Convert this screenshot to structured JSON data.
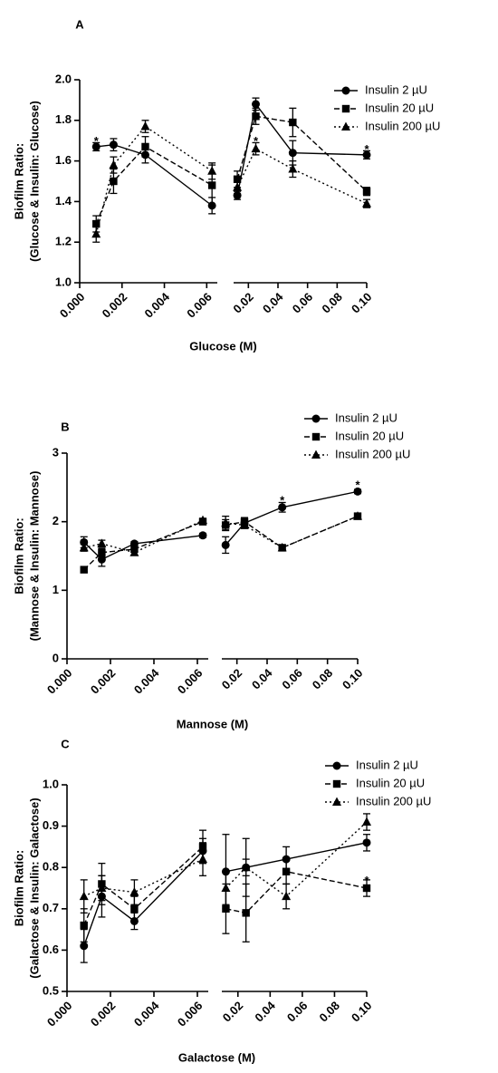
{
  "chart_data": [
    {
      "type": "line",
      "panel": "A",
      "ylabel": [
        "Biofilm Ratio:",
        "(Glucose & Insulin: Glucose)"
      ],
      "xlabel": "Glucose (M)",
      "ylim": [
        1.0,
        2.0
      ],
      "yticks": [
        {
          "value": 1.0,
          "label": "1.0"
        },
        1.2,
        1.4,
        1.6,
        1.8,
        {
          "value": 2.0,
          "label": "2.0"
        }
      ],
      "segments": [
        {
          "xlim": [
            0,
            0.0065
          ],
          "xticks": [
            {
              "value": 0,
              "label": "0.000"
            },
            0.002,
            0.004,
            0.006
          ]
        },
        {
          "xlim": [
            0.01,
            0.1
          ],
          "xticks": [
            0.02,
            0.04,
            0.06,
            0.08,
            {
              "value": 0.1,
              "label": "0.10"
            }
          ]
        }
      ],
      "x": [
        0.00078,
        0.0016,
        0.0031,
        0.00625,
        0.0125,
        0.025,
        0.05,
        0.1
      ],
      "legend": "upper right",
      "series": [
        {
          "name": "Insulin 2 µU",
          "color": "#000000",
          "marker": "circle",
          "linestyle": "solid",
          "values": [
            1.67,
            1.68,
            1.63,
            1.38,
            1.43,
            1.88,
            1.64,
            1.63
          ],
          "errors": [
            0.02,
            0.03,
            0.04,
            0.04,
            0.02,
            0.03,
            0.06,
            0.02
          ]
        },
        {
          "name": "Insulin 20 µU",
          "color": "#000000",
          "marker": "square",
          "linestyle": "dashed",
          "values": [
            1.29,
            1.5,
            1.67,
            1.48,
            1.51,
            1.82,
            1.79,
            1.45
          ],
          "errors": [
            0.04,
            0.06,
            0.05,
            0.1,
            0.04,
            0.04,
            0.07,
            0.02
          ]
        },
        {
          "name": "Insulin 200 µU",
          "color": "#000000",
          "marker": "triangle",
          "linestyle": "dotted",
          "values": [
            1.24,
            1.58,
            1.77,
            1.55,
            1.47,
            1.66,
            1.56,
            1.39
          ],
          "errors": [
            0.04,
            0.04,
            0.03,
            0.04,
            0.03,
            0.03,
            0.04,
            0.02
          ]
        }
      ],
      "annotations": [
        {
          "text": "*",
          "x": 0.00078,
          "y": 1.72
        },
        {
          "text": "*",
          "x": 0.025,
          "y": 1.72
        },
        {
          "text": "*",
          "x": 0.1,
          "y": 1.68
        }
      ]
    },
    {
      "type": "line",
      "panel": "B",
      "ylabel": [
        "Biofilm Ratio:",
        "(Mannose & Insulin: Mannose)"
      ],
      "xlabel": "Mannose (M)",
      "ylim": [
        0,
        3
      ],
      "yticks": [
        0,
        1,
        2,
        3
      ],
      "segments": [
        {
          "xlim": [
            0,
            0.0065
          ],
          "xticks": [
            {
              "value": 0,
              "label": "0.000"
            },
            0.002,
            0.004,
            0.006
          ]
        },
        {
          "xlim": [
            0.01,
            0.1
          ],
          "xticks": [
            0.02,
            0.04,
            0.06,
            0.08,
            {
              "value": 0.1,
              "label": "0.10"
            }
          ]
        }
      ],
      "x": [
        0.00078,
        0.0016,
        0.0031,
        0.00625,
        0.0125,
        0.025,
        0.05,
        0.1
      ],
      "legend": "upper right",
      "series": [
        {
          "name": "Insulin 2 µU",
          "color": "#000000",
          "marker": "circle",
          "linestyle": "solid",
          "values": [
            1.7,
            1.45,
            1.68,
            1.8,
            1.66,
            1.98,
            2.21,
            2.44
          ],
          "errors": [
            0.08,
            0.1,
            0.03,
            0.03,
            0.12,
            0.05,
            0.07,
            0.03
          ]
        },
        {
          "name": "Insulin 20 µU",
          "color": "#000000",
          "marker": "square",
          "linestyle": "dashed",
          "values": [
            1.3,
            1.55,
            1.6,
            2.0,
            1.95,
            2.0,
            1.62,
            2.08
          ],
          "errors": [
            0.03,
            0.06,
            0.04,
            0.03,
            0.08,
            0.06,
            0.04,
            0.04
          ]
        },
        {
          "name": "Insulin 200 µU",
          "color": "#000000",
          "marker": "triangle",
          "linestyle": "dotted",
          "values": [
            1.62,
            1.68,
            1.55,
            2.02,
            1.98,
            1.95,
            1.62,
            2.08
          ],
          "errors": [
            0.05,
            0.05,
            0.04,
            0.03,
            0.1,
            0.05,
            0.03,
            0.03
          ]
        }
      ],
      "annotations": [
        {
          "text": "*",
          "x": 0.05,
          "y": 2.38
        },
        {
          "text": "*",
          "x": 0.1,
          "y": 2.6
        }
      ]
    },
    {
      "type": "line",
      "panel": "C",
      "ylabel": [
        "Biofilm Ratio:",
        "(Galactose & Insulin: Galactose)"
      ],
      "xlabel": "Galactose (M)",
      "ylim": [
        0.5,
        1.0
      ],
      "yticks": [
        0.5,
        0.6,
        0.7,
        0.8,
        0.9,
        {
          "value": 1.0,
          "label": "1.0"
        }
      ],
      "segments": [
        {
          "xlim": [
            0,
            0.0065
          ],
          "xticks": [
            {
              "value": 0,
              "label": "0.000"
            },
            0.002,
            0.004,
            0.006
          ]
        },
        {
          "xlim": [
            0.01,
            0.1
          ],
          "xticks": [
            0.02,
            0.04,
            0.06,
            0.08,
            {
              "value": 0.1,
              "label": "0.10"
            }
          ]
        }
      ],
      "x": [
        0.00078,
        0.0016,
        0.0031,
        0.00625,
        0.0125,
        0.025,
        0.05,
        0.1
      ],
      "legend": "upper right",
      "series": [
        {
          "name": "Insulin 2 µU",
          "color": "#000000",
          "marker": "circle",
          "linestyle": "solid",
          "values": [
            0.61,
            0.73,
            0.67,
            0.84,
            0.79,
            0.8,
            0.82,
            0.86
          ],
          "errors": [
            0.04,
            0.05,
            0.02,
            0.03,
            0.09,
            0.07,
            0.03,
            0.02
          ]
        },
        {
          "name": "Insulin 20 µU",
          "color": "#000000",
          "marker": "square",
          "linestyle": "dashed",
          "values": [
            0.66,
            0.76,
            0.7,
            0.85,
            0.7,
            0.69,
            0.79,
            0.75
          ],
          "errors": [
            0.04,
            0.05,
            0.03,
            0.04,
            0.06,
            0.07,
            0.03,
            0.02
          ]
        },
        {
          "name": "Insulin 200 µU",
          "color": "#000000",
          "marker": "triangle",
          "linestyle": "dotted",
          "values": [
            0.73,
            0.75,
            0.74,
            0.82,
            0.75,
            0.8,
            0.73,
            0.91
          ],
          "errors": [
            0.04,
            0.03,
            0.03,
            0.04,
            0.04,
            0.02,
            0.03,
            0.02
          ]
        }
      ],
      "annotations": [
        {
          "text": "*",
          "x": 0.1,
          "y": 0.78
        }
      ]
    }
  ]
}
